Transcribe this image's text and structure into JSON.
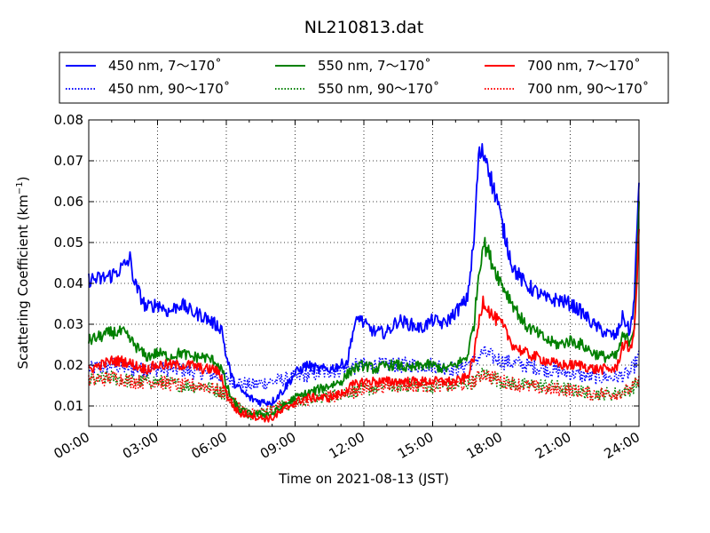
{
  "chart_data": {
    "type": "line",
    "title": "NL210813.dat",
    "xlabel": "Time on 2021-08-13 (JST)",
    "ylabel_main": "Scattering Coefficient (km",
    "ylabel_sup": "−1",
    "ylabel_tail": ")",
    "x_unit": "hours",
    "xlim": [
      0,
      24
    ],
    "ylim": [
      0.005,
      0.08
    ],
    "grid": true,
    "legend_position": "top",
    "x_ticks": [
      {
        "value": 0,
        "label": "00:00"
      },
      {
        "value": 3,
        "label": "03:00"
      },
      {
        "value": 6,
        "label": "06:00"
      },
      {
        "value": 9,
        "label": "09:00"
      },
      {
        "value": 12,
        "label": "12:00"
      },
      {
        "value": 15,
        "label": "15:00"
      },
      {
        "value": 18,
        "label": "18:00"
      },
      {
        "value": 21,
        "label": "21:00"
      },
      {
        "value": 24,
        "label": "24:00"
      }
    ],
    "y_ticks": [
      {
        "value": 0.01,
        "label": "0.01"
      },
      {
        "value": 0.02,
        "label": "0.02"
      },
      {
        "value": 0.03,
        "label": "0.03"
      },
      {
        "value": 0.04,
        "label": "0.04"
      },
      {
        "value": 0.05,
        "label": "0.05"
      },
      {
        "value": 0.06,
        "label": "0.06"
      },
      {
        "value": 0.07,
        "label": "0.07"
      },
      {
        "value": 0.08,
        "label": "0.08"
      }
    ],
    "series": [
      {
        "name": "450 nm, 7～170˚",
        "color": "#0000ff",
        "style": "solid",
        "x": [
          0,
          0.5,
          1,
          1.5,
          1.8,
          2,
          2.5,
          3,
          3.5,
          4,
          4.5,
          5,
          5.5,
          5.8,
          6,
          6.3,
          6.6,
          7,
          7.5,
          8,
          8.5,
          9,
          9.5,
          10,
          10.5,
          11,
          11.3,
          11.5,
          11.8,
          12,
          12.5,
          13,
          13.5,
          14,
          14.5,
          15,
          15.5,
          16,
          16.5,
          16.8,
          17,
          17.2,
          17.4,
          17.6,
          17.8,
          18,
          18.5,
          19,
          19.5,
          20,
          20.5,
          21,
          21.5,
          22,
          22.5,
          23,
          23.3,
          23.6,
          23.8,
          24
        ],
        "y": [
          0.041,
          0.041,
          0.042,
          0.044,
          0.046,
          0.04,
          0.034,
          0.035,
          0.033,
          0.035,
          0.033,
          0.032,
          0.03,
          0.029,
          0.022,
          0.016,
          0.014,
          0.012,
          0.011,
          0.011,
          0.014,
          0.018,
          0.02,
          0.019,
          0.019,
          0.02,
          0.021,
          0.028,
          0.032,
          0.03,
          0.028,
          0.028,
          0.031,
          0.03,
          0.029,
          0.031,
          0.03,
          0.033,
          0.036,
          0.05,
          0.071,
          0.072,
          0.07,
          0.064,
          0.061,
          0.055,
          0.044,
          0.04,
          0.038,
          0.036,
          0.036,
          0.035,
          0.033,
          0.03,
          0.028,
          0.027,
          0.032,
          0.028,
          0.036,
          0.066
        ]
      },
      {
        "name": "450 nm, 90～170˚",
        "color": "#0000ff",
        "style": "dotted",
        "x": [
          0,
          1,
          2,
          3,
          4,
          5,
          6,
          6.5,
          7,
          8,
          9,
          10,
          11,
          12,
          13,
          14,
          15,
          16,
          16.8,
          17.2,
          17.6,
          18,
          19,
          20,
          21,
          22,
          23,
          23.6,
          24
        ],
        "y": [
          0.019,
          0.02,
          0.019,
          0.019,
          0.019,
          0.018,
          0.017,
          0.016,
          0.015,
          0.016,
          0.017,
          0.018,
          0.019,
          0.02,
          0.02,
          0.02,
          0.02,
          0.019,
          0.021,
          0.023,
          0.022,
          0.021,
          0.02,
          0.019,
          0.018,
          0.017,
          0.017,
          0.018,
          0.022
        ]
      },
      {
        "name": "550 nm, 7～170˚",
        "color": "#008000",
        "style": "solid",
        "x": [
          0,
          0.5,
          1,
          1.5,
          2,
          2.5,
          3,
          3.5,
          4,
          4.5,
          5,
          5.5,
          5.8,
          6,
          6.3,
          6.6,
          7,
          7.5,
          8,
          8.5,
          9,
          9.5,
          10,
          10.5,
          11,
          11.5,
          12,
          12.5,
          13,
          13.5,
          14,
          14.5,
          15,
          15.5,
          16,
          16.5,
          16.8,
          17,
          17.2,
          17.4,
          17.6,
          18,
          18.5,
          19,
          19.5,
          20,
          20.5,
          21,
          21.5,
          22,
          22.5,
          23,
          23.3,
          23.6,
          23.8,
          24
        ],
        "y": [
          0.026,
          0.027,
          0.028,
          0.028,
          0.025,
          0.022,
          0.023,
          0.022,
          0.023,
          0.022,
          0.022,
          0.021,
          0.019,
          0.015,
          0.011,
          0.009,
          0.008,
          0.008,
          0.008,
          0.01,
          0.012,
          0.013,
          0.014,
          0.015,
          0.016,
          0.019,
          0.02,
          0.019,
          0.02,
          0.02,
          0.019,
          0.02,
          0.02,
          0.019,
          0.02,
          0.022,
          0.03,
          0.042,
          0.05,
          0.048,
          0.045,
          0.04,
          0.035,
          0.03,
          0.028,
          0.026,
          0.025,
          0.026,
          0.025,
          0.023,
          0.022,
          0.022,
          0.027,
          0.026,
          0.03,
          0.058
        ]
      },
      {
        "name": "550 nm, 90～170˚",
        "color": "#008000",
        "style": "dotted",
        "x": [
          0,
          1,
          2,
          3,
          4,
          5,
          6,
          6.5,
          7,
          8,
          9,
          10,
          11,
          12,
          13,
          14,
          15,
          16,
          16.8,
          17.2,
          17.6,
          18,
          19,
          20,
          21,
          22,
          23,
          23.6,
          24
        ],
        "y": [
          0.016,
          0.017,
          0.016,
          0.016,
          0.015,
          0.015,
          0.013,
          0.01,
          0.008,
          0.009,
          0.011,
          0.012,
          0.013,
          0.014,
          0.015,
          0.015,
          0.015,
          0.015,
          0.016,
          0.018,
          0.017,
          0.016,
          0.015,
          0.015,
          0.014,
          0.013,
          0.013,
          0.014,
          0.016
        ]
      },
      {
        "name": "700 nm, 7～170˚",
        "color": "#ff0000",
        "style": "solid",
        "x": [
          0,
          0.5,
          1,
          1.5,
          2,
          2.5,
          3,
          3.5,
          4,
          4.5,
          5,
          5.5,
          5.8,
          6,
          6.3,
          6.6,
          7,
          7.5,
          8,
          8.5,
          9,
          9.5,
          10,
          10.5,
          11,
          11.5,
          12,
          12.5,
          13,
          13.5,
          14,
          14.5,
          15,
          15.5,
          16,
          16.5,
          16.8,
          17,
          17.2,
          17.4,
          17.6,
          18,
          18.5,
          19,
          19.5,
          20,
          20.5,
          21,
          21.5,
          22,
          22.5,
          23,
          23.3,
          23.6,
          23.8,
          24
        ],
        "y": [
          0.019,
          0.02,
          0.021,
          0.021,
          0.02,
          0.019,
          0.02,
          0.02,
          0.02,
          0.02,
          0.019,
          0.019,
          0.017,
          0.013,
          0.01,
          0.008,
          0.008,
          0.007,
          0.007,
          0.009,
          0.011,
          0.012,
          0.012,
          0.012,
          0.013,
          0.015,
          0.016,
          0.016,
          0.016,
          0.016,
          0.016,
          0.016,
          0.016,
          0.016,
          0.016,
          0.017,
          0.022,
          0.03,
          0.036,
          0.034,
          0.032,
          0.03,
          0.025,
          0.023,
          0.022,
          0.021,
          0.02,
          0.02,
          0.02,
          0.019,
          0.019,
          0.019,
          0.025,
          0.024,
          0.028,
          0.052
        ]
      },
      {
        "name": "700 nm, 90～170˚",
        "color": "#ff0000",
        "style": "dotted",
        "x": [
          0,
          1,
          2,
          3,
          4,
          5,
          6,
          6.5,
          7,
          8,
          9,
          10,
          11,
          12,
          13,
          14,
          15,
          16,
          16.8,
          17.2,
          17.6,
          18,
          19,
          20,
          21,
          22,
          23,
          23.6,
          24
        ],
        "y": [
          0.016,
          0.017,
          0.016,
          0.016,
          0.015,
          0.015,
          0.013,
          0.01,
          0.008,
          0.009,
          0.011,
          0.012,
          0.013,
          0.014,
          0.015,
          0.015,
          0.015,
          0.015,
          0.016,
          0.018,
          0.017,
          0.016,
          0.015,
          0.014,
          0.014,
          0.013,
          0.013,
          0.014,
          0.016
        ]
      }
    ]
  }
}
